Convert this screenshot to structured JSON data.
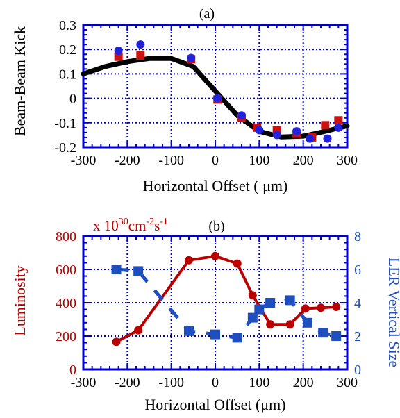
{
  "chart_data": [
    {
      "panel_label": "(a)",
      "type": "scatter",
      "xlabel": "Horizontal Offset ( μm)",
      "ylabel": "Beam-Beam Kick",
      "xlim": [
        -300,
        300
      ],
      "ylim": [
        -0.2,
        0.3
      ],
      "xticks": [
        -300,
        -200,
        -100,
        0,
        100,
        200,
        300
      ],
      "yticks": [
        -0.2,
        -0.1,
        0,
        0.1,
        0.2,
        0.3
      ],
      "ytick_labels": [
        "-0.2",
        "-0.1",
        "0",
        "0.1",
        "0.2",
        "0.3"
      ],
      "grid": true,
      "colors": {
        "square": "#cc1111",
        "circle": "#2222dd",
        "line": "#000000",
        "axis": "#0000cc"
      },
      "series": [
        {
          "marker": "square",
          "x": [
            -220,
            -170,
            -55,
            5,
            60,
            95,
            140,
            185,
            220,
            250,
            280
          ],
          "y": [
            0.17,
            0.175,
            0.16,
            -0.005,
            -0.08,
            -0.12,
            -0.13,
            -0.145,
            -0.16,
            -0.11,
            -0.09
          ]
        },
        {
          "marker": "circle",
          "x": [
            -220,
            -170,
            -55,
            5,
            60,
            100,
            140,
            185,
            215,
            255,
            280
          ],
          "y": [
            0.195,
            0.22,
            0.165,
            0.0,
            -0.07,
            -0.13,
            -0.15,
            -0.135,
            -0.165,
            -0.165,
            -0.12
          ]
        },
        {
          "marker": "line",
          "x": [
            -300,
            -250,
            -200,
            -150,
            -100,
            -50,
            0,
            50,
            100,
            150,
            200,
            250,
            300
          ],
          "y": [
            0.1,
            0.13,
            0.15,
            0.163,
            0.163,
            0.13,
            0.03,
            -0.07,
            -0.135,
            -0.158,
            -0.155,
            -0.135,
            -0.113
          ]
        }
      ]
    },
    {
      "panel_label": "(b)",
      "type": "line",
      "xlabel": "Horizontal Offset (μm)",
      "ylabel": "Luminosity",
      "y2label": "LER Vertical Size",
      "unit_label": {
        "base": "x 10",
        "exp1": "30",
        "mid": "cm",
        "exp2": "-2",
        "mid2": "s",
        "exp3": "-1"
      },
      "xlim": [
        -300,
        300
      ],
      "ylim": [
        0,
        800
      ],
      "y2lim": [
        0,
        8
      ],
      "xticks": [
        -300,
        -200,
        -100,
        0,
        100,
        200,
        300
      ],
      "yticks": [
        0,
        200,
        400,
        600,
        800
      ],
      "y2ticks": [
        0,
        2,
        4,
        6,
        8
      ],
      "grid": true,
      "colors": {
        "luminosity": "#bb0000",
        "size": "#1f4fbf",
        "axis": "#0000cc"
      },
      "series": [
        {
          "name": "Luminosity",
          "axis": "left",
          "marker": "circle",
          "x": [
            -225,
            -175,
            -60,
            0,
            50,
            85,
            125,
            170,
            205,
            240,
            275
          ],
          "y": [
            165,
            235,
            655,
            680,
            635,
            445,
            270,
            270,
            365,
            370,
            375
          ]
        },
        {
          "name": "LER Vertical Size",
          "axis": "right",
          "marker": "square",
          "x": [
            -225,
            -175,
            -60,
            0,
            50,
            85,
            100,
            125,
            170,
            210,
            245,
            275
          ],
          "y": [
            6.0,
            5.9,
            2.3,
            2.1,
            1.9,
            3.1,
            3.6,
            4.0,
            4.15,
            2.8,
            2.2,
            2.0
          ]
        }
      ]
    }
  ]
}
